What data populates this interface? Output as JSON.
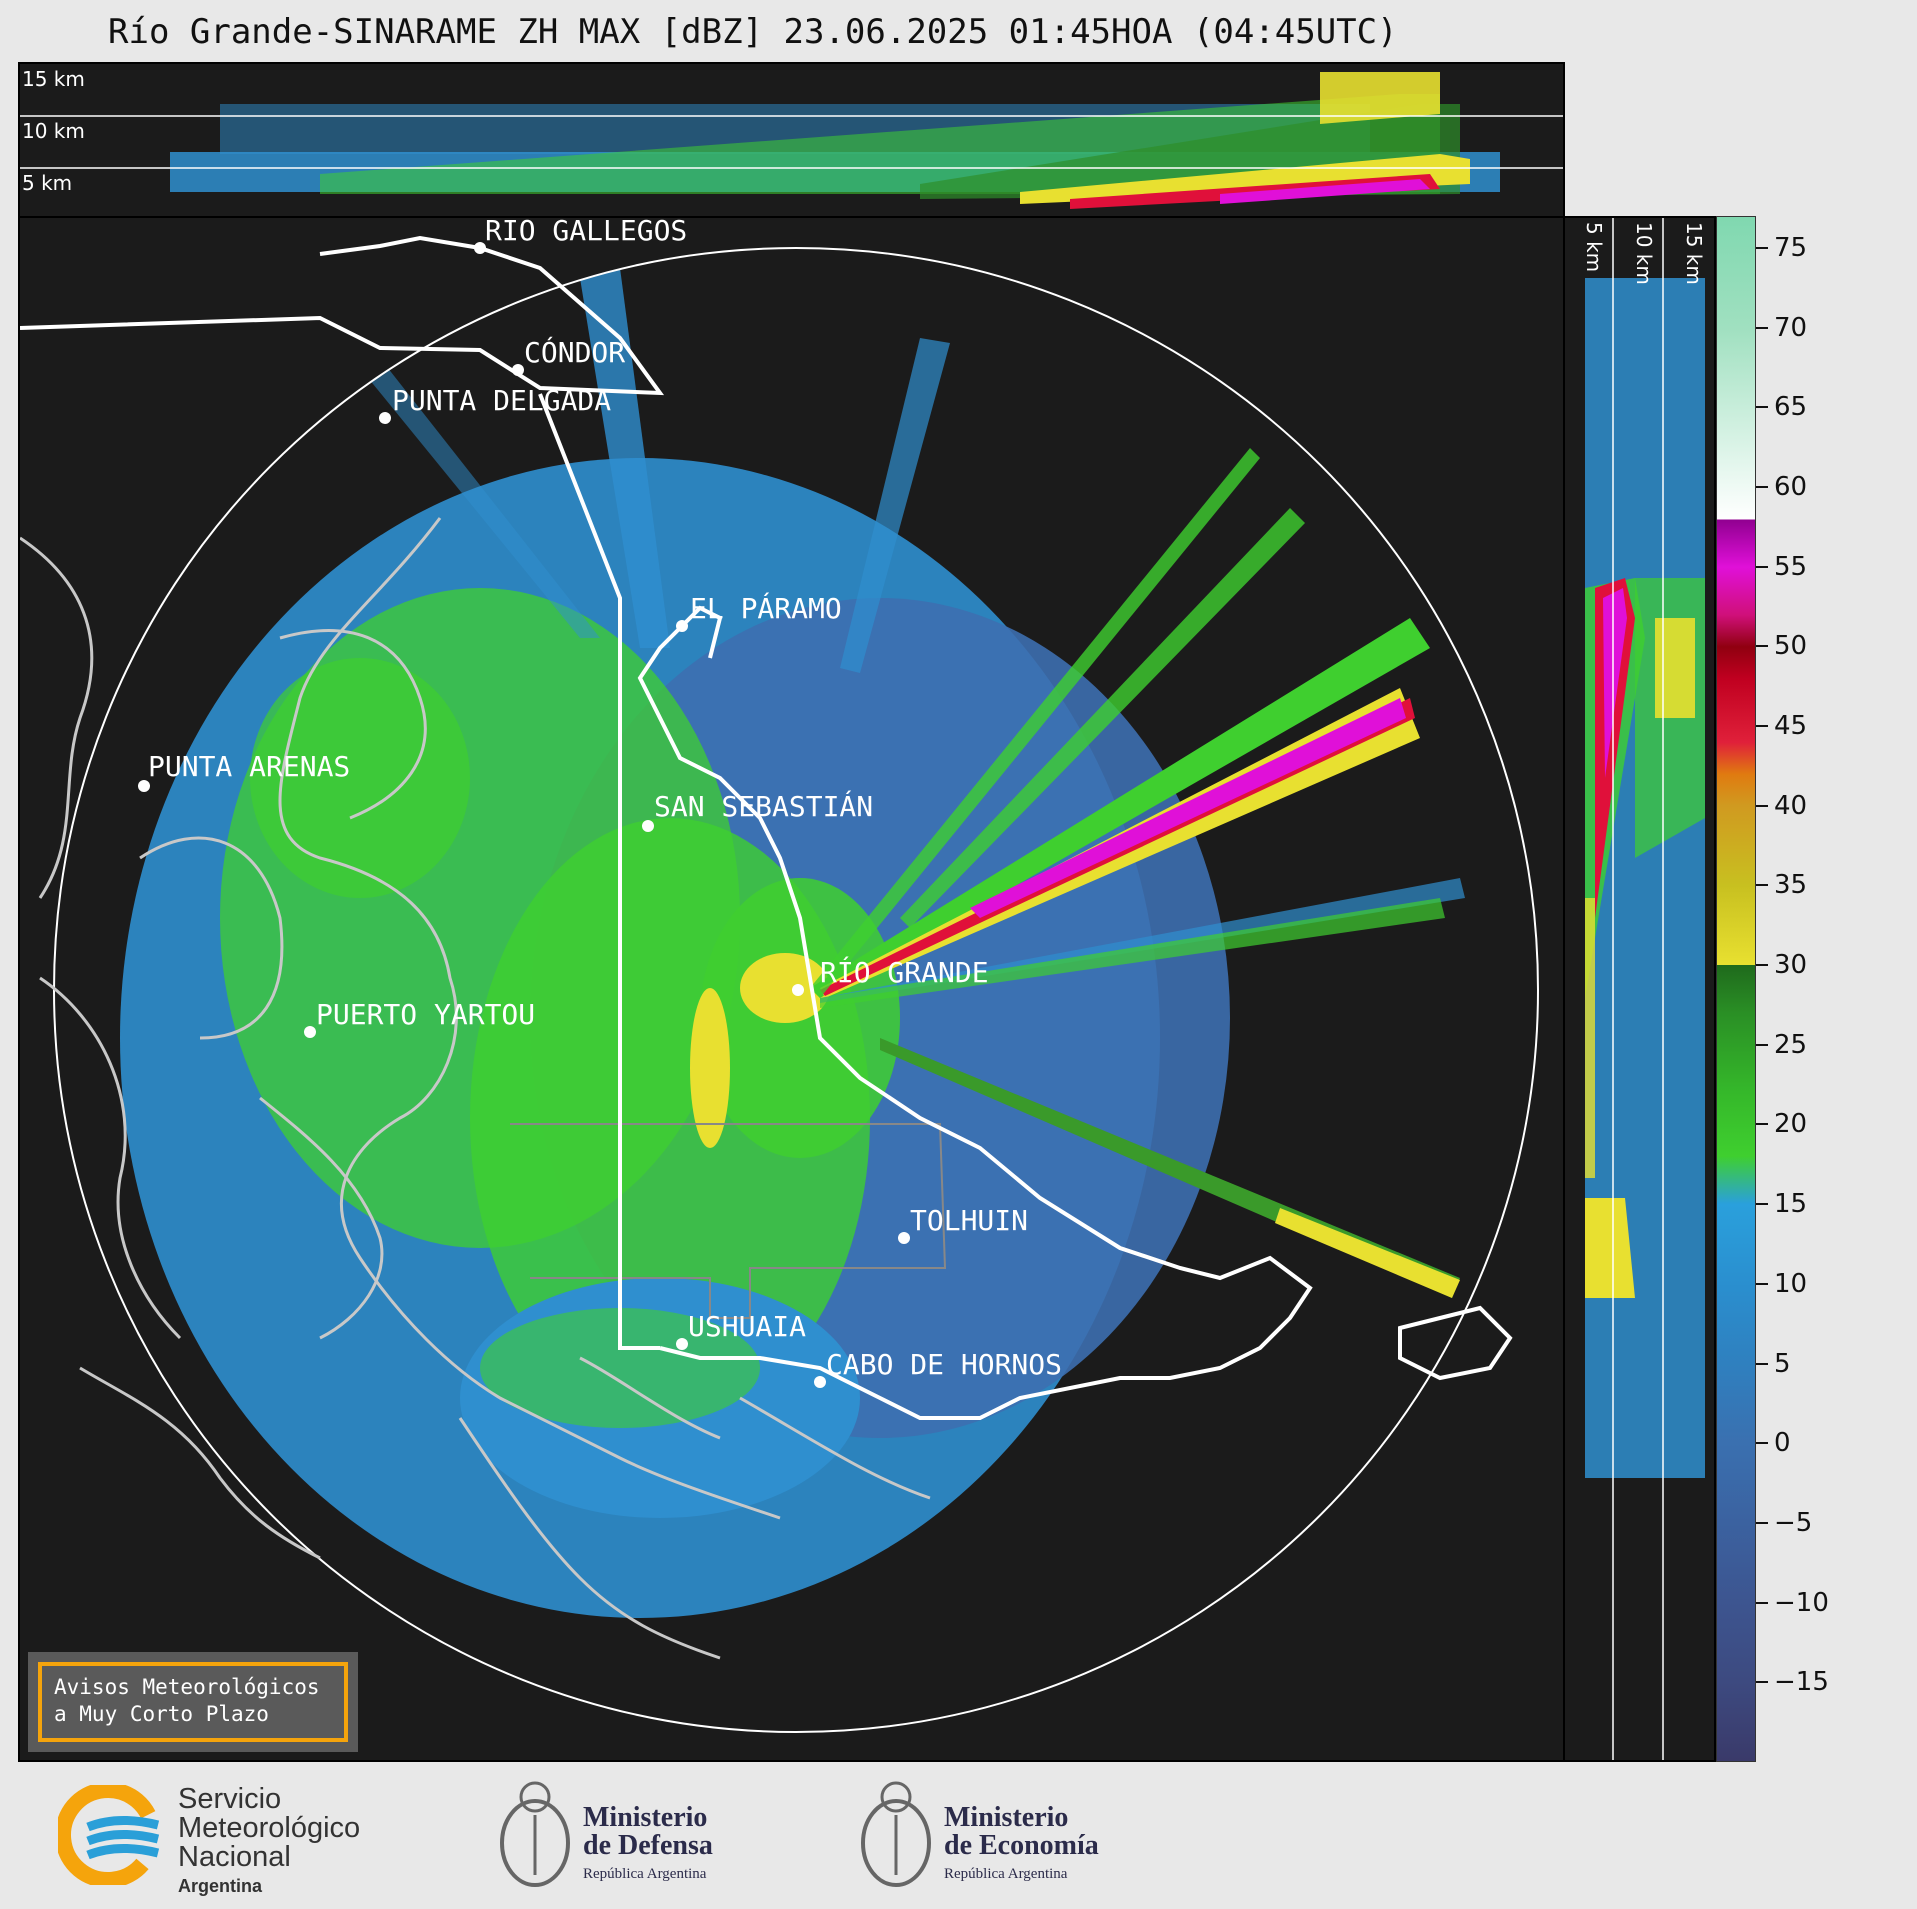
{
  "title": "Río Grande-SINARAME ZH MAX [dBZ] 23.06.2025 01:45HOA (04:45UTC)",
  "top_panel": {
    "km_labels": [
      "15 km",
      "10 km",
      "5 km"
    ]
  },
  "side_panel": {
    "km_labels": [
      "5 km",
      "10 km",
      "15 km"
    ]
  },
  "places": [
    {
      "name": "RÍO GALLEGOS"
    },
    {
      "name": "CÓNDOR"
    },
    {
      "name": "PUNTA DELGADA"
    },
    {
      "name": "EL PÁRAMO"
    },
    {
      "name": "PUNTA ARENAS"
    },
    {
      "name": "SAN SEBASTIÁN"
    },
    {
      "name": "RÍO GRANDE"
    },
    {
      "name": "PUERTO YARTOU"
    },
    {
      "name": "TOLHUIN"
    },
    {
      "name": "USHUAIA"
    },
    {
      "name": "CABO DE HORNOS"
    }
  ],
  "colorbar": {
    "unit": "dBZ",
    "ticks": [
      "75",
      "70",
      "65",
      "60",
      "55",
      "50",
      "45",
      "40",
      "35",
      "30",
      "25",
      "20",
      "15",
      "10",
      "5",
      "0",
      "−5",
      "−10",
      "−15"
    ],
    "range": [
      -20,
      77
    ]
  },
  "alert": {
    "line1": "Avisos Meteorológicos",
    "line2": "a Muy Corto Plazo"
  },
  "logos": {
    "smn": {
      "line1": "Servicio",
      "line2": "Meteorológico",
      "line3": "Nacional",
      "line4": "Argentina"
    },
    "defensa": {
      "title1": "Ministerio",
      "title2": "de Defensa",
      "sub": "República Argentina"
    },
    "economia": {
      "title1": "Ministerio",
      "title2": "de Economía",
      "sub": "República Argentina"
    }
  },
  "colors": {
    "background": "#1b1b1b",
    "weak_echo": "#2f8fcf",
    "moderate_echo": "#3fcf2f",
    "strong_echo": "#e8e030",
    "very_strong_echo": "#e0103a",
    "extreme_echo": "#e010d8",
    "alert_border": "#f5a40c"
  }
}
